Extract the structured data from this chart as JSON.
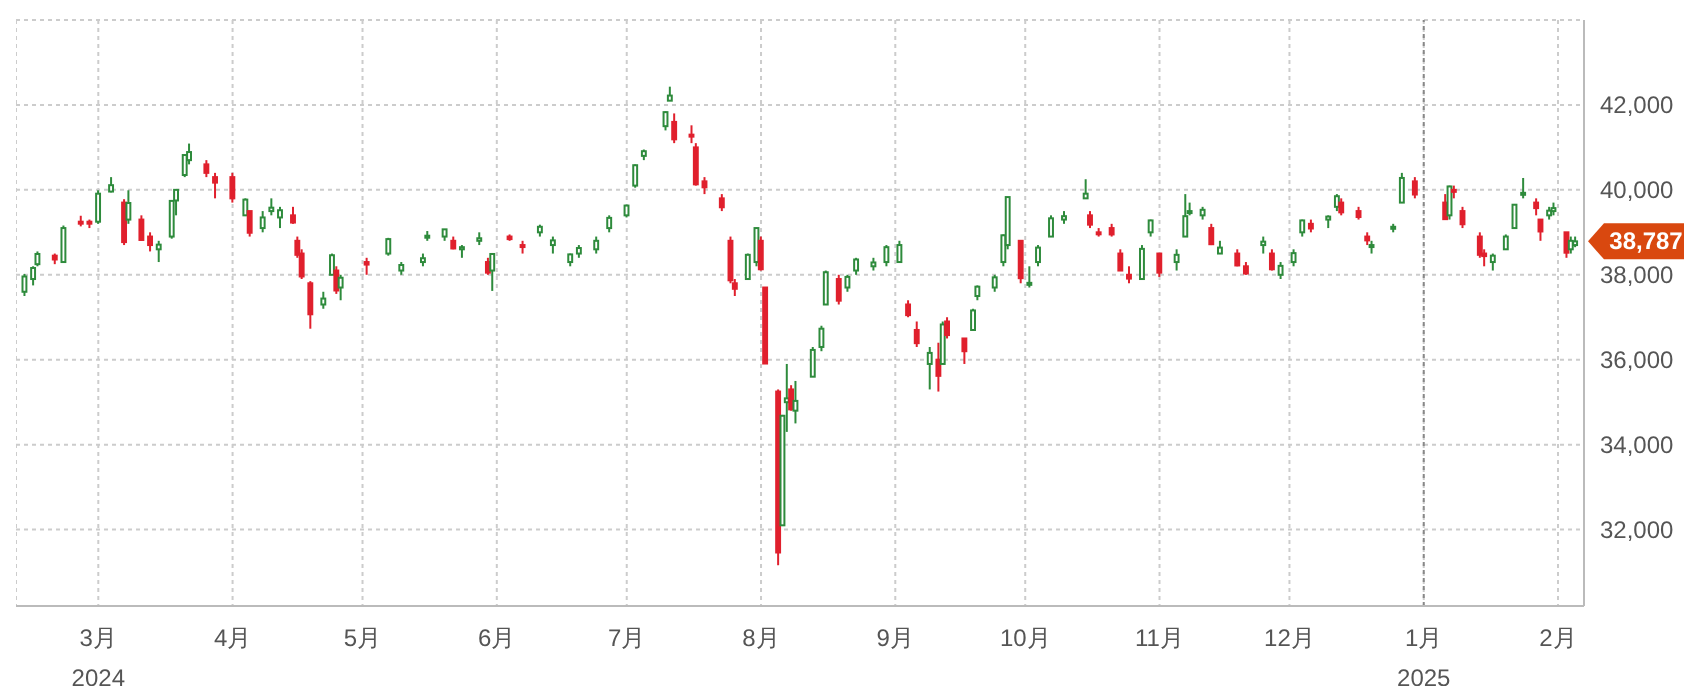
{
  "chart_data": {
    "type": "candlestick",
    "x": [
      "2024-02-13",
      "2024-02-15",
      "2024-02-16",
      "2024-02-20",
      "2024-02-22",
      "2024-02-26",
      "2024-02-28",
      "2024-03-01",
      "2024-03-04",
      "2024-03-07",
      "2024-03-08",
      "2024-03-11",
      "2024-03-13",
      "2024-03-15",
      "2024-03-18",
      "2024-03-19",
      "2024-03-21",
      "2024-03-22",
      "2024-03-26",
      "2024-03-28",
      "2024-04-01",
      "2024-04-04",
      "2024-04-05",
      "2024-04-08",
      "2024-04-10",
      "2024-04-12",
      "2024-04-15",
      "2024-04-16",
      "2024-04-17",
      "2024-04-19",
      "2024-04-22",
      "2024-04-24",
      "2024-04-25",
      "2024-04-26",
      "2024-05-02",
      "2024-05-07",
      "2024-05-10",
      "2024-05-15",
      "2024-05-16",
      "2024-05-20",
      "2024-05-22",
      "2024-05-24",
      "2024-05-28",
      "2024-05-30",
      "2024-05-31",
      "2024-06-04",
      "2024-06-07",
      "2024-06-11",
      "2024-06-14",
      "2024-06-18",
      "2024-06-20",
      "2024-06-24",
      "2024-06-27",
      "2024-07-01",
      "2024-07-03",
      "2024-07-05",
      "2024-07-10",
      "2024-07-11",
      "2024-07-12",
      "2024-07-16",
      "2024-07-17",
      "2024-07-19",
      "2024-07-23",
      "2024-07-25",
      "2024-07-26",
      "2024-07-29",
      "2024-07-31",
      "2024-08-01",
      "2024-08-02",
      "2024-08-05",
      "2024-08-06",
      "2024-08-07",
      "2024-08-08",
      "2024-08-09",
      "2024-08-13",
      "2024-08-15",
      "2024-08-16",
      "2024-08-19",
      "2024-08-21",
      "2024-08-23",
      "2024-08-27",
      "2024-08-30",
      "2024-09-02",
      "2024-09-04",
      "2024-09-06",
      "2024-09-09",
      "2024-09-11",
      "2024-09-12",
      "2024-09-13",
      "2024-09-17",
      "2024-09-19",
      "2024-09-20",
      "2024-09-24",
      "2024-09-26",
      "2024-09-27",
      "2024-09-30",
      "2024-10-02",
      "2024-10-04",
      "2024-10-07",
      "2024-10-10",
      "2024-10-15",
      "2024-10-16",
      "2024-10-18",
      "2024-10-21",
      "2024-10-23",
      "2024-10-25",
      "2024-10-28",
      "2024-10-30",
      "2024-11-01",
      "2024-11-05",
      "2024-11-07",
      "2024-11-08",
      "2024-11-11",
      "2024-11-13",
      "2024-11-15",
      "2024-11-19",
      "2024-11-21",
      "2024-11-25",
      "2024-11-27",
      "2024-11-29",
      "2024-12-02",
      "2024-12-04",
      "2024-12-06",
      "2024-12-10",
      "2024-12-12",
      "2024-12-13",
      "2024-12-17",
      "2024-12-19",
      "2024-12-20",
      "2024-12-25",
      "2024-12-27",
      "2024-12-30",
      "2025-01-06",
      "2025-01-07",
      "2025-01-08",
      "2025-01-10",
      "2025-01-14",
      "2025-01-15",
      "2025-01-17",
      "2025-01-20",
      "2025-01-22",
      "2025-01-24",
      "2025-01-27",
      "2025-01-28",
      "2025-01-30",
      "2025-01-31",
      "2025-02-03",
      "2025-02-04",
      "2025-02-05"
    ],
    "ohlc": [
      [
        37600,
        38020,
        37500,
        37960
      ],
      [
        37900,
        38200,
        37750,
        38160
      ],
      [
        38250,
        38550,
        38200,
        38490
      ],
      [
        38450,
        38500,
        38250,
        38360
      ],
      [
        38300,
        39160,
        38300,
        39100
      ],
      [
        39250,
        39390,
        39140,
        39230
      ],
      [
        39250,
        39300,
        39100,
        39210
      ],
      [
        39250,
        39990,
        39200,
        39910
      ],
      [
        39960,
        40300,
        39940,
        40110
      ],
      [
        39700,
        39780,
        38700,
        38770
      ],
      [
        39300,
        39990,
        39200,
        39690
      ],
      [
        39300,
        39400,
        38800,
        38820
      ],
      [
        38900,
        39000,
        38550,
        38700
      ],
      [
        38600,
        38800,
        38300,
        38710
      ],
      [
        38900,
        39750,
        38850,
        39740
      ],
      [
        39750,
        40010,
        39400,
        40000
      ],
      [
        40350,
        40820,
        40300,
        40820
      ],
      [
        40700,
        41090,
        40600,
        40890
      ],
      [
        40600,
        40700,
        40300,
        40400
      ],
      [
        40300,
        40400,
        39800,
        40170
      ],
      [
        40300,
        40400,
        39700,
        39800
      ],
      [
        39400,
        39800,
        39400,
        39770
      ],
      [
        39500,
        39500,
        38900,
        38990
      ],
      [
        39100,
        39500,
        39000,
        39350
      ],
      [
        39500,
        39800,
        39400,
        39580
      ],
      [
        39350,
        39600,
        39100,
        39520
      ],
      [
        39400,
        39600,
        39200,
        39230
      ],
      [
        38800,
        38900,
        38400,
        38470
      ],
      [
        38500,
        38600,
        37900,
        37960
      ],
      [
        37800,
        37850,
        36730,
        37070
      ],
      [
        37300,
        37600,
        37200,
        37440
      ],
      [
        38000,
        38500,
        38000,
        38460
      ],
      [
        38100,
        38200,
        37550,
        37630
      ],
      [
        37700,
        38000,
        37400,
        37930
      ],
      [
        38300,
        38400,
        38000,
        38240
      ],
      [
        38500,
        38870,
        38450,
        38840
      ],
      [
        38100,
        38300,
        38000,
        38230
      ],
      [
        38300,
        38500,
        38200,
        38390
      ],
      [
        38900,
        39030,
        38800,
        38920
      ],
      [
        38900,
        39070,
        38800,
        39070
      ],
      [
        38800,
        38900,
        38600,
        38620
      ],
      [
        38600,
        38700,
        38400,
        38650
      ],
      [
        38800,
        39000,
        38700,
        38860
      ],
      [
        38300,
        38400,
        38000,
        38050
      ],
      [
        38100,
        38500,
        37620,
        38490
      ],
      [
        38900,
        38950,
        38800,
        38840
      ],
      [
        38700,
        38800,
        38500,
        38680
      ],
      [
        39000,
        39180,
        38900,
        39130
      ],
      [
        38700,
        38900,
        38500,
        38810
      ],
      [
        38300,
        38500,
        38200,
        38480
      ],
      [
        38500,
        38700,
        38400,
        38630
      ],
      [
        38600,
        38900,
        38500,
        38800
      ],
      [
        39100,
        39400,
        39000,
        39340
      ],
      [
        39400,
        39650,
        39350,
        39630
      ],
      [
        40100,
        40600,
        40050,
        40580
      ],
      [
        40800,
        40950,
        40700,
        40910
      ],
      [
        41500,
        41850,
        41400,
        41830
      ],
      [
        42100,
        42430,
        42100,
        42220
      ],
      [
        41600,
        41800,
        41100,
        41190
      ],
      [
        41300,
        41520,
        41100,
        41280
      ],
      [
        41000,
        41100,
        40100,
        40130
      ],
      [
        40200,
        40300,
        39900,
        40060
      ],
      [
        39800,
        39900,
        39500,
        39590
      ],
      [
        38800,
        38900,
        37800,
        37870
      ],
      [
        37800,
        37900,
        37500,
        37670
      ],
      [
        37900,
        38500,
        37900,
        38470
      ],
      [
        38300,
        39110,
        38200,
        39100
      ],
      [
        38800,
        38900,
        38100,
        38130
      ],
      [
        37700,
        37700,
        35900,
        35910
      ],
      [
        35250,
        35300,
        31160,
        31460
      ],
      [
        32100,
        34700,
        32100,
        34680
      ],
      [
        35000,
        35900,
        34300,
        35090
      ],
      [
        35300,
        35400,
        34800,
        34830
      ],
      [
        34800,
        35500,
        34500,
        35030
      ],
      [
        35600,
        36300,
        35600,
        36230
      ],
      [
        36300,
        36800,
        36200,
        36730
      ],
      [
        37300,
        38100,
        37300,
        38060
      ],
      [
        37900,
        38000,
        37300,
        37390
      ],
      [
        37700,
        38000,
        37600,
        37950
      ],
      [
        38100,
        38400,
        38000,
        38360
      ],
      [
        38200,
        38400,
        38100,
        38290
      ],
      [
        38300,
        38700,
        38200,
        38650
      ],
      [
        38300,
        38800,
        38300,
        38700
      ],
      [
        37300,
        37400,
        37000,
        37050
      ],
      [
        36700,
        36900,
        36300,
        36390
      ],
      [
        35900,
        36300,
        35300,
        36160
      ],
      [
        36000,
        36400,
        35250,
        35620
      ],
      [
        35900,
        36900,
        35900,
        36830
      ],
      [
        36900,
        37000,
        36500,
        36580
      ],
      [
        36500,
        36500,
        35900,
        36200
      ],
      [
        36700,
        37200,
        36700,
        37160
      ],
      [
        37500,
        37750,
        37400,
        37720
      ],
      [
        37700,
        38000,
        37600,
        37940
      ],
      [
        38300,
        38950,
        38200,
        38930
      ],
      [
        38700,
        39830,
        38600,
        39830
      ],
      [
        38800,
        38800,
        37800,
        37920
      ],
      [
        37800,
        38200,
        37700,
        37810
      ],
      [
        38300,
        38700,
        38200,
        38640
      ],
      [
        38900,
        39400,
        38900,
        39330
      ],
      [
        39300,
        39500,
        39200,
        39380
      ],
      [
        39800,
        40250,
        39800,
        39910
      ],
      [
        39400,
        39500,
        39100,
        39180
      ],
      [
        39000,
        39100,
        38900,
        38980
      ],
      [
        39100,
        39200,
        38900,
        38950
      ],
      [
        38500,
        38600,
        38100,
        38100
      ],
      [
        38000,
        38200,
        37800,
        37910
      ],
      [
        37900,
        38700,
        37900,
        38610
      ],
      [
        39000,
        39300,
        38900,
        39280
      ],
      [
        38500,
        38500,
        37950,
        38050
      ],
      [
        38300,
        38600,
        38100,
        38470
      ],
      [
        38900,
        39900,
        38900,
        39380
      ],
      [
        39500,
        39700,
        39400,
        39500
      ],
      [
        39400,
        39600,
        39300,
        39530
      ],
      [
        39100,
        39200,
        38700,
        38720
      ],
      [
        38500,
        38800,
        38500,
        38640
      ],
      [
        38500,
        38600,
        38200,
        38220
      ],
      [
        38200,
        38300,
        38000,
        38030
      ],
      [
        38700,
        38900,
        38500,
        38780
      ],
      [
        38500,
        38600,
        38100,
        38130
      ],
      [
        38000,
        38300,
        37900,
        38210
      ],
      [
        38300,
        38600,
        38200,
        38510
      ],
      [
        39000,
        39300,
        38900,
        39280
      ],
      [
        39200,
        39300,
        39000,
        39090
      ],
      [
        39300,
        39400,
        39100,
        39370
      ],
      [
        39600,
        39900,
        39500,
        39850
      ],
      [
        39700,
        39800,
        39400,
        39470
      ],
      [
        39500,
        39600,
        39300,
        39360
      ],
      [
        38900,
        39000,
        38700,
        38810
      ],
      [
        38700,
        38800,
        38500,
        38700
      ],
      [
        39100,
        39200,
        39000,
        39130
      ],
      [
        39700,
        40400,
        39700,
        40280
      ],
      [
        40200,
        40300,
        39800,
        39890
      ],
      [
        39700,
        39900,
        39300,
        39310
      ],
      [
        39400,
        40100,
        39300,
        40080
      ],
      [
        40000,
        40100,
        39800,
        39980
      ],
      [
        39500,
        39600,
        39100,
        39190
      ],
      [
        38900,
        39000,
        38400,
        38470
      ],
      [
        38500,
        38600,
        38200,
        38440
      ],
      [
        38300,
        38500,
        38100,
        38450
      ],
      [
        38600,
        38950,
        38600,
        38900
      ],
      [
        39100,
        39650,
        39100,
        39650
      ],
      [
        39900,
        40280,
        39800,
        39930
      ],
      [
        39700,
        39800,
        39400,
        39570
      ],
      [
        39300,
        39300,
        38800,
        39020
      ],
      [
        39400,
        39600,
        39300,
        39510
      ],
      [
        39500,
        39700,
        39400,
        39570
      ],
      [
        39000,
        39000,
        38400,
        38520
      ],
      [
        38600,
        38900,
        38500,
        38800
      ],
      [
        38700,
        38900,
        38650,
        38787
      ]
    ],
    "xlim": [
      "2024-02-11",
      "2025-02-07"
    ],
    "xticks": [
      {
        "value": "2024-03-01",
        "label": "3月\n2024"
      },
      {
        "value": "2024-04-01",
        "label": "4月"
      },
      {
        "value": "2024-05-01",
        "label": "5月"
      },
      {
        "value": "2024-06-01",
        "label": "6月"
      },
      {
        "value": "2024-07-01",
        "label": "7月"
      },
      {
        "value": "2024-08-01",
        "label": "8月"
      },
      {
        "value": "2024-09-01",
        "label": "9月"
      },
      {
        "value": "2024-10-01",
        "label": "10月"
      },
      {
        "value": "2024-11-01",
        "label": "11月"
      },
      {
        "value": "2024-12-01",
        "label": "12月"
      },
      {
        "value": "2025-01-01",
        "label": "1月\n2025"
      },
      {
        "value": "2025-02-01",
        "label": "2月"
      }
    ],
    "ylim": [
      30200,
      44000
    ],
    "yticks": [
      {
        "value": 32000,
        "label": "32,000"
      },
      {
        "value": 34000,
        "label": "34,000"
      },
      {
        "value": 36000,
        "label": "36,000"
      },
      {
        "value": 38000,
        "label": "38,000"
      },
      {
        "value": 40000,
        "label": "40,000"
      },
      {
        "value": 42000,
        "label": "42,000"
      }
    ],
    "grid": true,
    "ref_lines": [
      {
        "axis": "x",
        "value": "2025-01-01",
        "color": "#888888",
        "line_style": "dotted"
      }
    ],
    "annotations": [
      "38,787"
    ]
  }
}
